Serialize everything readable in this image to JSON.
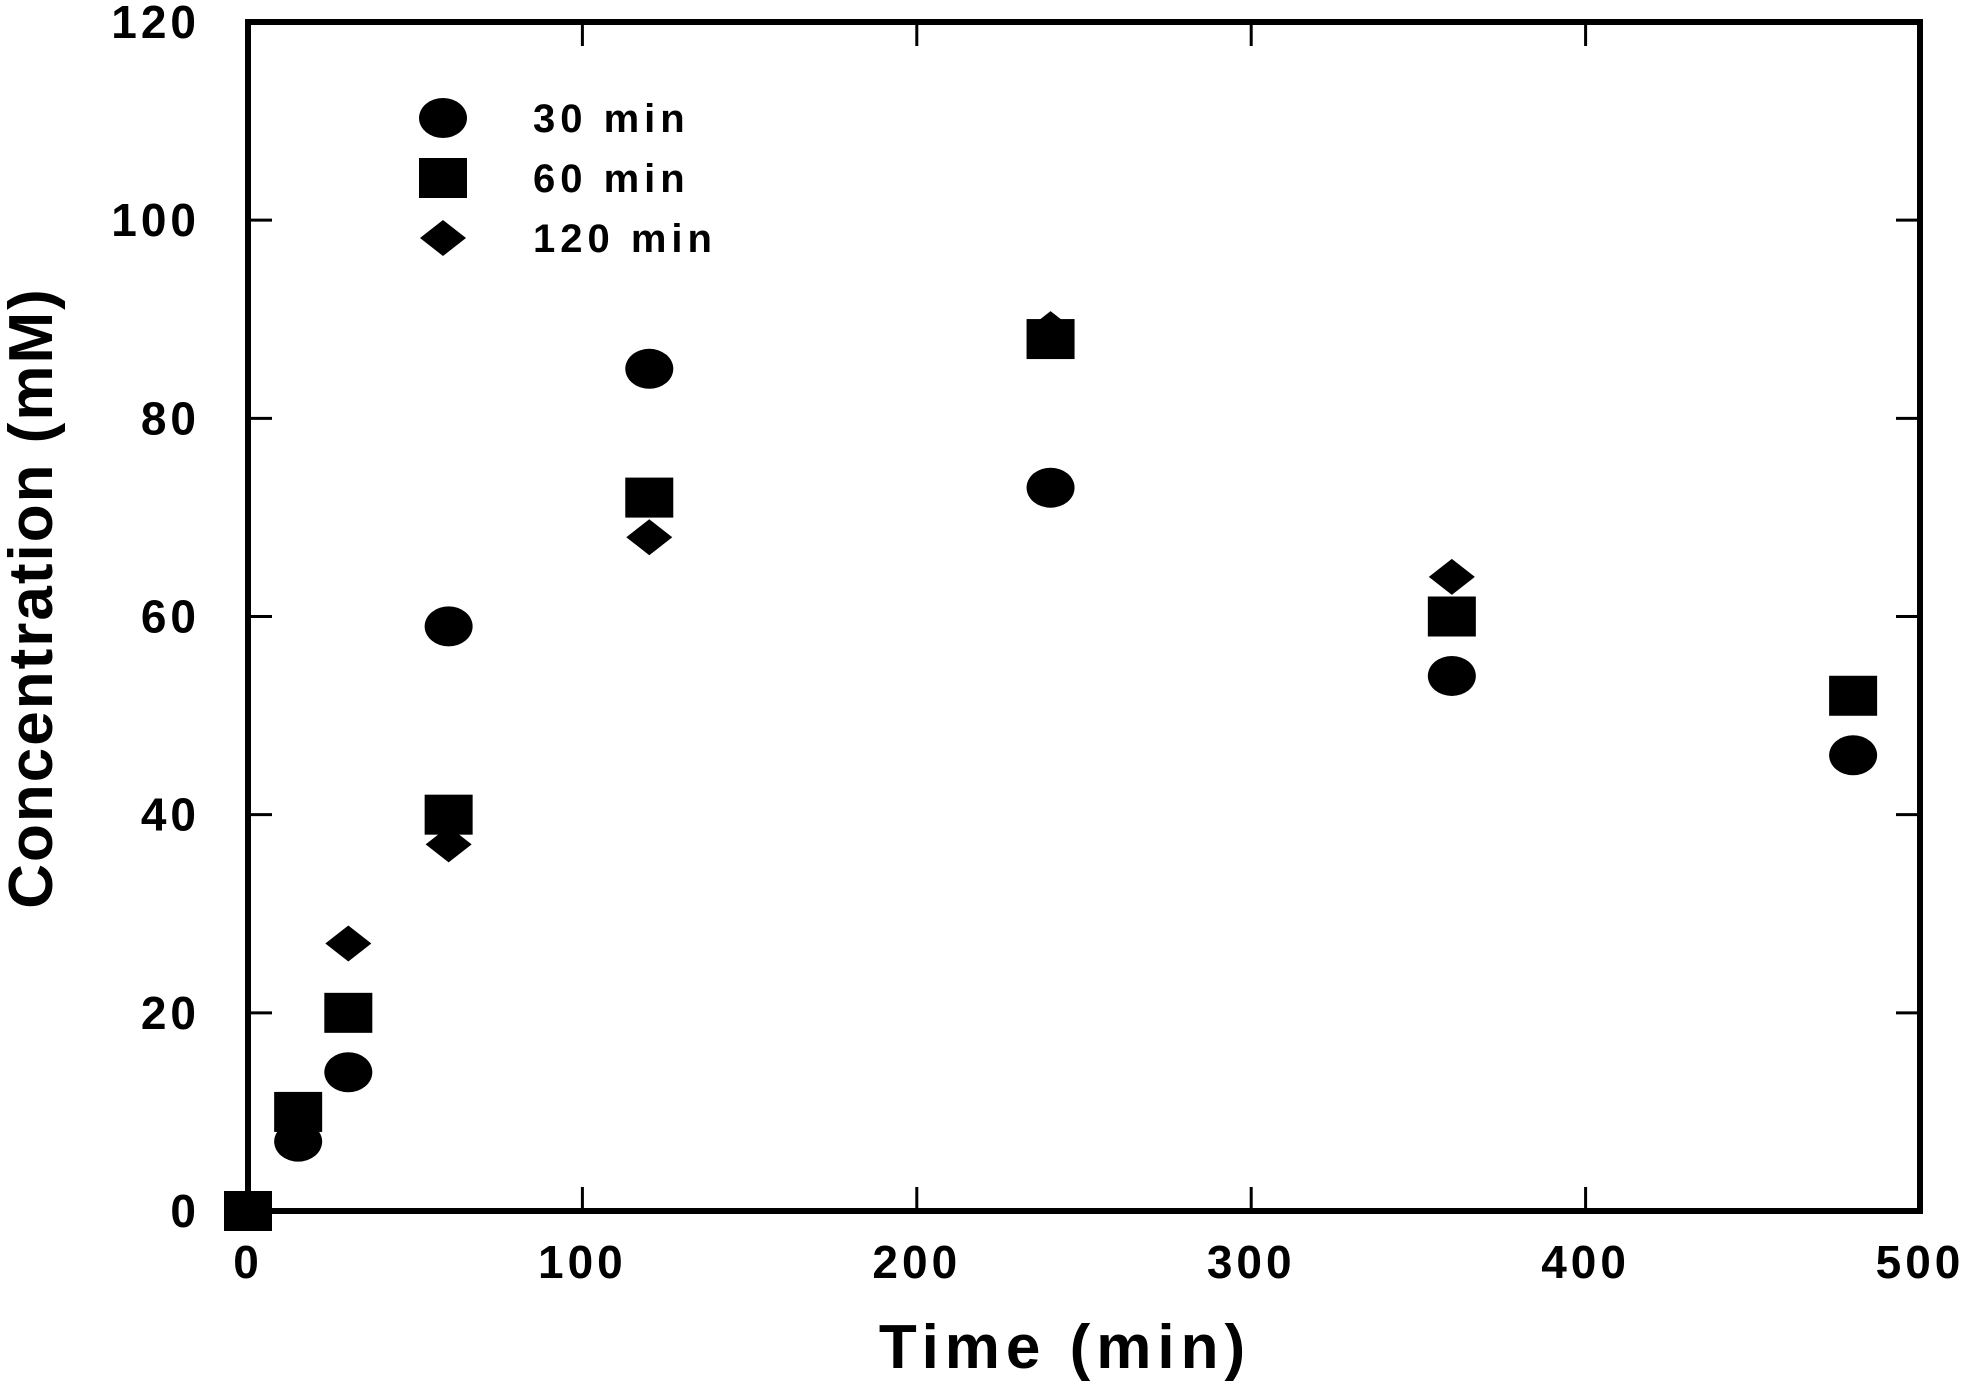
{
  "chart_data": {
    "type": "scatter",
    "xlabel": "Time (min)",
    "ylabel": "Concentration (mM)",
    "xlim": [
      0,
      500
    ],
    "ylim": [
      0,
      120
    ],
    "xticks": [
      0,
      100,
      200,
      300,
      400,
      500
    ],
    "yticks": [
      0,
      20,
      40,
      60,
      80,
      100,
      120
    ],
    "grid": false,
    "legend_position": "top-left",
    "series": [
      {
        "name": "30 min",
        "marker": "circle",
        "color": "#000000",
        "points": [
          [
            0,
            0
          ],
          [
            15,
            7
          ],
          [
            30,
            14
          ],
          [
            60,
            59
          ],
          [
            120,
            85
          ],
          [
            240,
            73
          ],
          [
            360,
            54
          ],
          [
            480,
            46
          ]
        ]
      },
      {
        "name": "60 min",
        "marker": "square",
        "color": "#000000",
        "points": [
          [
            0,
            0
          ],
          [
            15,
            10
          ],
          [
            30,
            20
          ],
          [
            60,
            40
          ],
          [
            120,
            72
          ],
          [
            240,
            88
          ],
          [
            360,
            60
          ],
          [
            480,
            52
          ]
        ]
      },
      {
        "name": "120 min",
        "marker": "diamond",
        "color": "#000000",
        "points": [
          [
            0,
            0
          ],
          [
            15,
            9
          ],
          [
            30,
            27
          ],
          [
            60,
            37
          ],
          [
            120,
            68
          ],
          [
            240,
            89
          ],
          [
            360,
            64
          ]
        ]
      }
    ]
  }
}
